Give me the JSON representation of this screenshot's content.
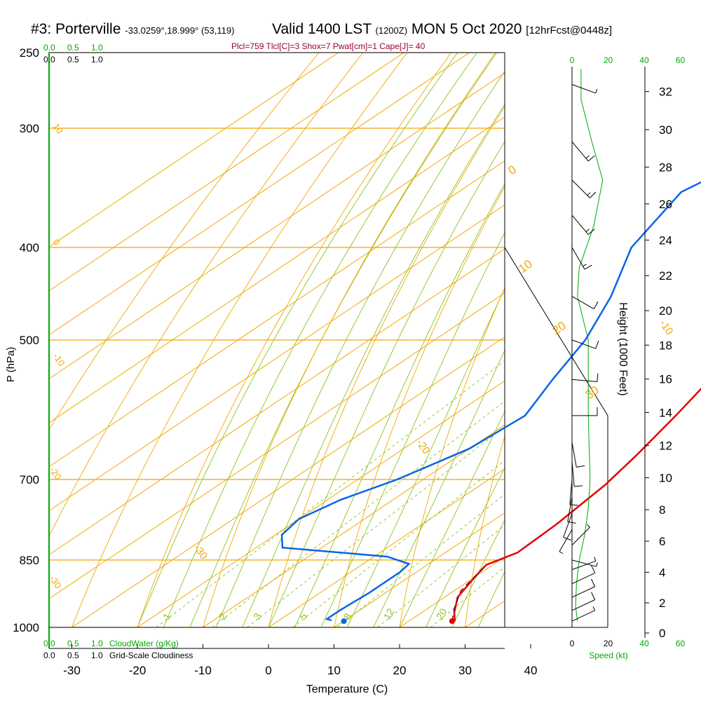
{
  "header": {
    "station": "#3: Porterville",
    "coords": "-33.0259°,18.999° (53,119)",
    "valid": "Valid 1400 LST",
    "zulu": "(1200Z)",
    "date": "MON 5 Oct 2020",
    "forecast": "[12hrFcst@0448z]",
    "indices": "Plcl=759 Tlcl[C]=3 Shox=7 Pwat[cm]=1 Cape[J]= 40"
  },
  "colors": {
    "temperature": "#e60000",
    "dewpoint": "#0a64e6",
    "isotherm": "#f0a800",
    "dry_adiabat": "#f0a800",
    "moist_adiabat": "#8cc31e",
    "mixing_ratio": "#8cc31e",
    "cloud": "#00aa00",
    "parcel": "#660033",
    "wind": "#000000"
  },
  "chart_data": {
    "type": "line",
    "ylabel": "P (hPa)",
    "xlabel": "Temperature (C)",
    "right_ylabel": "Height (1000 Feet)",
    "pressure_ticks": [
      "250",
      "300",
      "400",
      "500",
      "700",
      "850",
      "1000"
    ],
    "temperature_ticks": [
      "-30",
      "-20",
      "-10",
      "0",
      "10",
      "20",
      "30",
      "40"
    ],
    "height_ticks": [
      "0",
      "2",
      "4",
      "6",
      "8",
      "10",
      "12",
      "14",
      "16",
      "18",
      "20",
      "22",
      "24",
      "26",
      "28",
      "30",
      "32"
    ],
    "isotherm_labels": [
      "-30",
      "-20",
      "-10",
      "0",
      "10",
      "20",
      "30"
    ],
    "adiabat_labels": [
      "10",
      "0",
      "-10",
      "-20",
      "-30"
    ],
    "mixing_ratio_labels": [
      "1",
      "2",
      "3",
      "5",
      "8",
      "12",
      "20"
    ],
    "cloud_axis": {
      "top_green": [
        "0.0",
        "0.5",
        "1.0"
      ],
      "top_black": [
        "0.0",
        "0.5",
        "1.0"
      ],
      "bottom_green": [
        "0.0",
        "0.5",
        "1.0"
      ],
      "bottom_black": [
        "0.0",
        "0.5",
        "1.0"
      ],
      "cloudwater_label": "CloudWater (g/Kg)",
      "cloudiness_label": "Grid-Scale Cloudiness"
    },
    "speed_axis": {
      "top_ticks": [
        "0",
        "20",
        "40",
        "60"
      ],
      "bottom_ticks": [
        "0",
        "20",
        "40",
        "60"
      ],
      "label": "Speed (kt)"
    },
    "series": [
      {
        "name": "Temperature",
        "points": [
          [
            27,
            985
          ],
          [
            25,
            965
          ],
          [
            22,
            930
          ],
          [
            20,
            885
          ],
          [
            19,
            860
          ],
          [
            21,
            835
          ],
          [
            20.5,
            780
          ],
          [
            19,
            710
          ],
          [
            17,
            660
          ],
          [
            14,
            600
          ],
          [
            11,
            550
          ],
          [
            9,
            500
          ],
          [
            8.2,
            450
          ],
          [
            7.5,
            400
          ],
          [
            4,
            350
          ],
          [
            1.5,
            300
          ],
          [
            1,
            260
          ]
        ]
      },
      {
        "name": "Dewpoint",
        "points": [
          [
            8,
            983
          ],
          [
            7,
            980
          ],
          [
            7,
            960
          ],
          [
            7.5,
            920
          ],
          [
            7.5,
            875
          ],
          [
            7,
            858
          ],
          [
            2,
            843
          ],
          [
            -16,
            825
          ],
          [
            -19,
            800
          ],
          [
            -20,
            770
          ],
          [
            -18,
            735
          ],
          [
            -14,
            700
          ],
          [
            -10,
            650
          ],
          [
            -9,
            600
          ],
          [
            -13,
            550
          ],
          [
            -17,
            500
          ],
          [
            -23,
            450
          ],
          [
            -31,
            400
          ],
          [
            -36,
            350
          ],
          [
            -33,
            320
          ],
          [
            -29,
            300
          ],
          [
            -27,
            280
          ],
          [
            -24,
            255
          ]
        ]
      },
      {
        "name": "Parcel",
        "points": [
          [
            26.6,
            985
          ],
          [
            24,
            955
          ],
          [
            21,
            915
          ],
          [
            19,
            860
          ]
        ]
      },
      {
        "name": "Cloud",
        "points": []
      }
    ],
    "surface_temperature": {
      "t": 28,
      "p": 985
    },
    "surface_dewpoint": {
      "t": 11.5,
      "p": 985
    },
    "wind_profile": [
      {
        "p": 985,
        "speed": 6,
        "dir": 245
      },
      {
        "p": 960,
        "speed": 8,
        "dir": 245
      },
      {
        "p": 930,
        "speed": 8,
        "dir": 245
      },
      {
        "p": 900,
        "speed": 8,
        "dir": 245
      },
      {
        "p": 870,
        "speed": 6,
        "dir": 250
      },
      {
        "p": 850,
        "speed": 4,
        "dir": 285
      },
      {
        "p": 820,
        "speed": 4,
        "dir": 225
      },
      {
        "p": 790,
        "speed": 6,
        "dir": 30
      },
      {
        "p": 760,
        "speed": 8,
        "dir": 20
      },
      {
        "p": 730,
        "speed": 10,
        "dir": 10
      },
      {
        "p": 700,
        "speed": 10,
        "dir": 5
      },
      {
        "p": 670,
        "speed": 10,
        "dir": 355
      },
      {
        "p": 640,
        "speed": 10,
        "dir": 350
      },
      {
        "p": 600,
        "speed": 10,
        "dir": 270
      },
      {
        "p": 550,
        "speed": 10,
        "dir": 275
      },
      {
        "p": 500,
        "speed": 10,
        "dir": 290
      },
      {
        "p": 450,
        "speed": 8,
        "dir": 300
      },
      {
        "p": 400,
        "speed": 15,
        "dir": 330
      },
      {
        "p": 370,
        "speed": 15,
        "dir": 320
      },
      {
        "p": 340,
        "speed": 15,
        "dir": 315
      },
      {
        "p": 310,
        "speed": 15,
        "dir": 320
      },
      {
        "p": 270,
        "speed": 5,
        "dir": 290
      }
    ],
    "speed_profile": [
      {
        "p": 985,
        "speed": 3
      },
      {
        "p": 950,
        "speed": 2
      },
      {
        "p": 900,
        "speed": 2.5
      },
      {
        "p": 850,
        "speed": 4
      },
      {
        "p": 800,
        "speed": 7
      },
      {
        "p": 750,
        "speed": 9
      },
      {
        "p": 700,
        "speed": 10
      },
      {
        "p": 600,
        "speed": 9
      },
      {
        "p": 500,
        "speed": 9
      },
      {
        "p": 450,
        "speed": 3
      },
      {
        "p": 420,
        "speed": 4
      },
      {
        "p": 380,
        "speed": 12
      },
      {
        "p": 340,
        "speed": 17
      },
      {
        "p": 310,
        "speed": 11
      },
      {
        "p": 280,
        "speed": 5
      },
      {
        "p": 260,
        "speed": 5
      }
    ]
  }
}
